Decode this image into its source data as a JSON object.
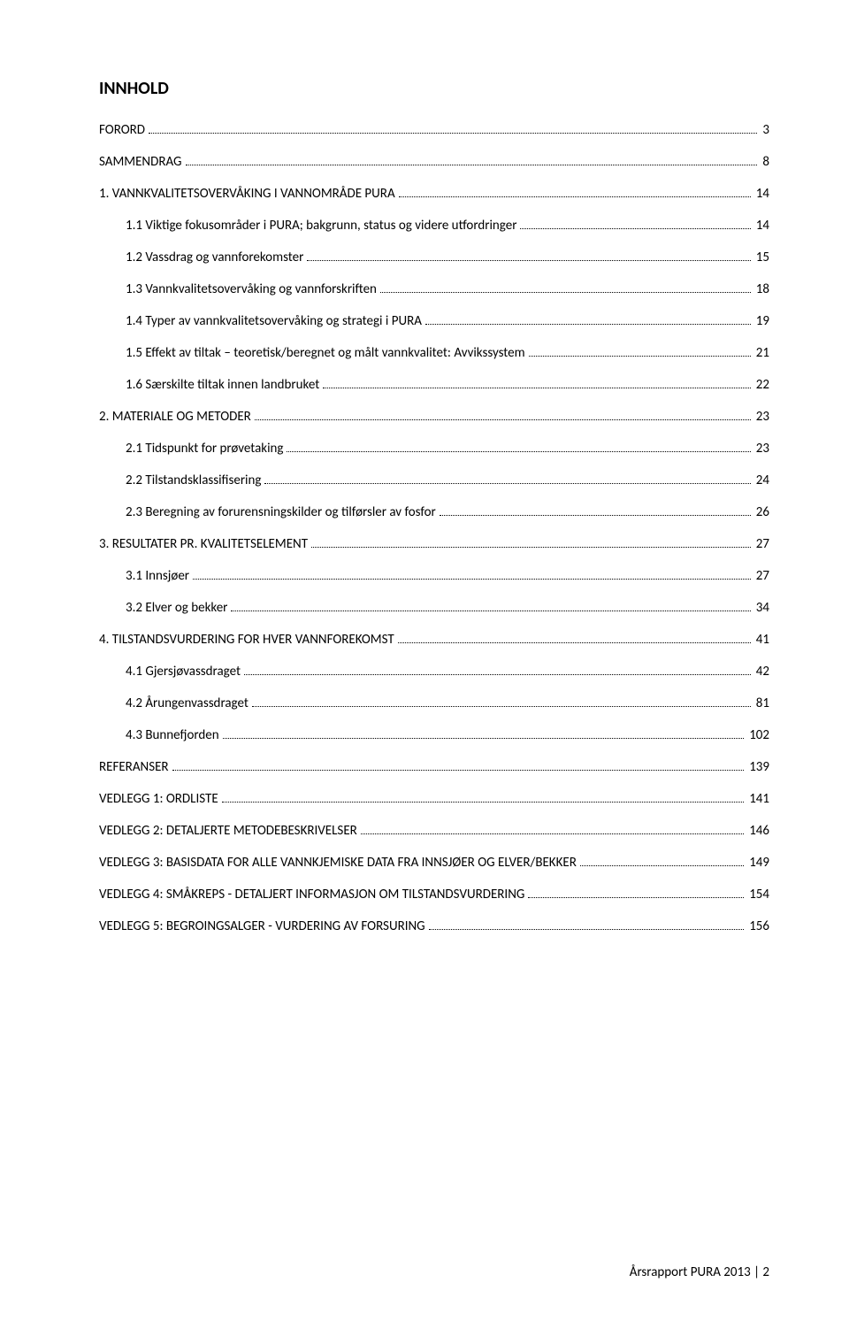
{
  "title": "INNHOLD",
  "toc": [
    {
      "level": 1,
      "label": "FORORD",
      "page": "3"
    },
    {
      "level": 1,
      "label": "SAMMENDRAG",
      "page": "8"
    },
    {
      "level": 1,
      "label": "1.   VANNKVALITETSOVERVÅKING I VANNOMRÅDE PURA",
      "page": "14"
    },
    {
      "level": 2,
      "label": "1.1 Viktige fokusområder i PURA; bakgrunn, status og videre utfordringer",
      "page": "14"
    },
    {
      "level": 2,
      "label": "1.2 Vassdrag og vannforekomster",
      "page": "15"
    },
    {
      "level": 2,
      "label": "1.3 Vannkvalitetsovervåking og vannforskriften",
      "page": "18"
    },
    {
      "level": 2,
      "label": "1.4 Typer av vannkvalitetsovervåking og strategi i PURA",
      "page": "19"
    },
    {
      "level": 2,
      "label": "1.5 Effekt av tiltak – teoretisk/beregnet og målt vannkvalitet: Avvikssystem",
      "page": "21"
    },
    {
      "level": 2,
      "label": "1.6 Særskilte tiltak innen landbruket",
      "page": "22"
    },
    {
      "level": 1,
      "label": "2.   MATERIALE OG METODER",
      "page": "23"
    },
    {
      "level": 2,
      "label": "2.1 Tidspunkt for prøvetaking",
      "page": "23"
    },
    {
      "level": 2,
      "label": "2.2 Tilstandsklassifisering",
      "page": "24"
    },
    {
      "level": 2,
      "label": "2.3 Beregning av forurensningskilder og tilførsler av fosfor",
      "page": "26"
    },
    {
      "level": 1,
      "label": "3.   RESULTATER PR. KVALITETSELEMENT",
      "page": "27"
    },
    {
      "level": 2,
      "label": "3.1     Innsjøer",
      "page": "27"
    },
    {
      "level": 2,
      "label": "3.2     Elver og bekker",
      "page": "34"
    },
    {
      "level": 1,
      "label": "4.   TILSTANDSVURDERING FOR HVER VANNFOREKOMST",
      "page": "41"
    },
    {
      "level": 2,
      "label": "4.1     Gjersjøvassdraget",
      "page": "42"
    },
    {
      "level": 2,
      "label": "4.2     Årungenvassdraget",
      "page": "81"
    },
    {
      "level": 2,
      "label": "4.3     Bunnefjorden",
      "page": "102"
    },
    {
      "level": 1,
      "label": "REFERANSER",
      "page": "139"
    },
    {
      "level": 1,
      "label": "VEDLEGG 1: ORDLISTE",
      "page": "141"
    },
    {
      "level": 1,
      "label": "VEDLEGG 2: DETALJERTE METODEBESKRIVELSER",
      "page": "146"
    },
    {
      "level": 1,
      "label": "VEDLEGG 3: BASISDATA FOR ALLE VANNKJEMISKE DATA FRA INNSJØER OG ELVER/BEKKER",
      "page": "149"
    },
    {
      "level": 1,
      "label": "VEDLEGG 4: SMÅKREPS - DETALJERT INFORMASJON OM TILSTANDSVURDERING",
      "page": "154"
    },
    {
      "level": 1,
      "label": "VEDLEGG 5: BEGROINGSALGER - VURDERING AV FORSURING",
      "page": "156"
    }
  ],
  "footer": "Årsrapport PURA 2013 | 2"
}
